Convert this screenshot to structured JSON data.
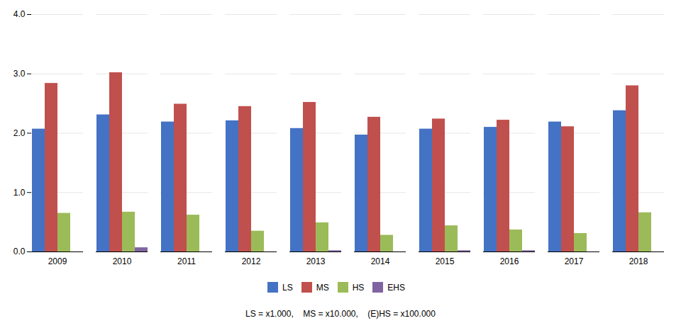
{
  "chart_data": {
    "type": "bar",
    "categories": [
      "2009",
      "2010",
      "2011",
      "2012",
      "2013",
      "2014",
      "2015",
      "2016",
      "2017",
      "2018"
    ],
    "series": [
      {
        "name": "LS",
        "color": "#4472C4",
        "values": [
          2.07,
          2.31,
          2.19,
          2.21,
          2.08,
          1.97,
          2.07,
          2.1,
          2.19,
          2.38
        ]
      },
      {
        "name": "MS",
        "color": "#C0504D",
        "values": [
          2.84,
          3.02,
          2.49,
          2.45,
          2.52,
          2.27,
          2.24,
          2.22,
          2.11,
          2.8
        ]
      },
      {
        "name": "HS",
        "color": "#9BBB59",
        "values": [
          0.65,
          0.67,
          0.62,
          0.35,
          0.49,
          0.28,
          0.44,
          0.37,
          0.31,
          0.66
        ]
      },
      {
        "name": "EHS",
        "color": "#8064A2",
        "values": [
          0.0,
          0.07,
          0.0,
          0.0,
          0.02,
          0.0,
          0.02,
          0.02,
          0.0,
          0.0
        ]
      }
    ],
    "ylim": [
      0,
      4
    ],
    "yticks": [
      0,
      1,
      2,
      3,
      4
    ],
    "grid": true,
    "legend": "bottom",
    "annotations": [
      "LS = x1.000,    MS = x10.000,    (E)HS = x100.000"
    ]
  }
}
